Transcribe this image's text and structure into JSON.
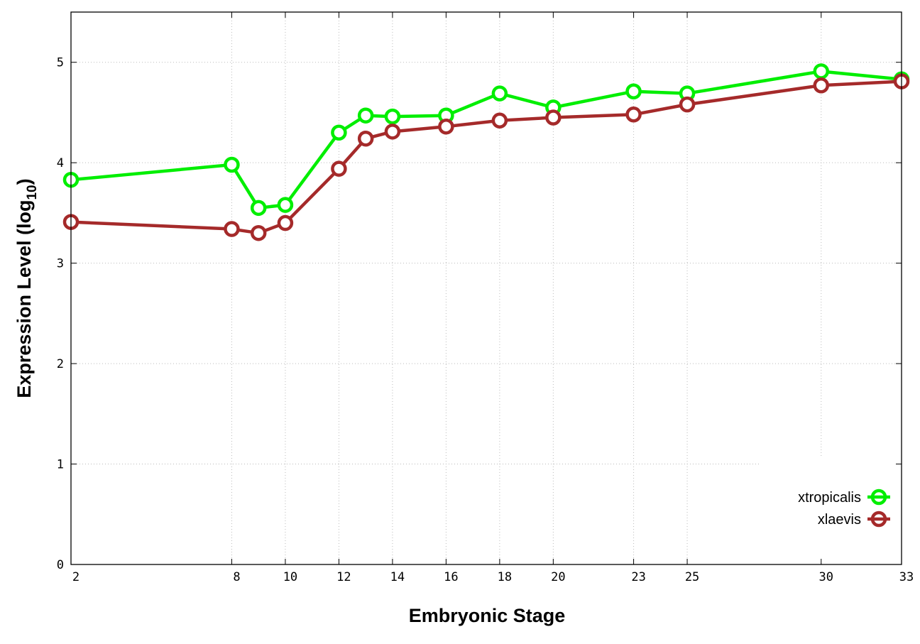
{
  "chart_data": {
    "type": "line",
    "xlabel": "Embryonic Stage",
    "ylabel": "Expression Level (log",
    "ylabel_sub": "10",
    "ylabel_end": ")",
    "xlim": [
      2,
      33
    ],
    "ylim": [
      0,
      5.5
    ],
    "xticks": [
      2,
      8,
      10,
      12,
      14,
      16,
      18,
      20,
      23,
      25,
      30,
      33
    ],
    "yticks": [
      0,
      1,
      2,
      3,
      4,
      5
    ],
    "grid": true,
    "legend_position": "bottom-right",
    "x": [
      2,
      8,
      9,
      10,
      12,
      13,
      14,
      16,
      18,
      20,
      23,
      25,
      30,
      33
    ],
    "series": [
      {
        "name": "xtropicalis",
        "color": "#00ee00",
        "values": [
          3.83,
          3.98,
          3.55,
          3.58,
          4.3,
          4.47,
          4.46,
          4.47,
          4.69,
          4.55,
          4.71,
          4.69,
          4.91,
          4.83
        ]
      },
      {
        "name": "xlaevis",
        "color": "#a52a2a",
        "values": [
          3.41,
          3.34,
          3.3,
          3.4,
          3.94,
          4.24,
          4.31,
          4.36,
          4.42,
          4.45,
          4.48,
          4.58,
          4.77,
          4.81
        ]
      }
    ]
  }
}
